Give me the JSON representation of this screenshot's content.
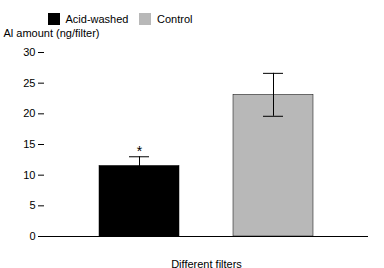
{
  "chart_data": {
    "type": "bar",
    "categories": [
      "Acid-washed",
      "Control"
    ],
    "values": [
      11.5,
      23.1
    ],
    "errors": [
      1.5,
      3.5
    ],
    "colors": [
      "#000000",
      "#b8b8b8"
    ],
    "xlabel": "Different filters",
    "ylabel": "Al amount (ng/filter)",
    "ylim": [
      0,
      30
    ],
    "yticks": [
      0,
      5,
      10,
      15,
      20,
      25,
      30
    ],
    "tick_labels": "y",
    "legend": "upper left",
    "annotations": [
      {
        "text": "*",
        "category": "Acid-washed",
        "y": 13.2
      }
    ]
  }
}
